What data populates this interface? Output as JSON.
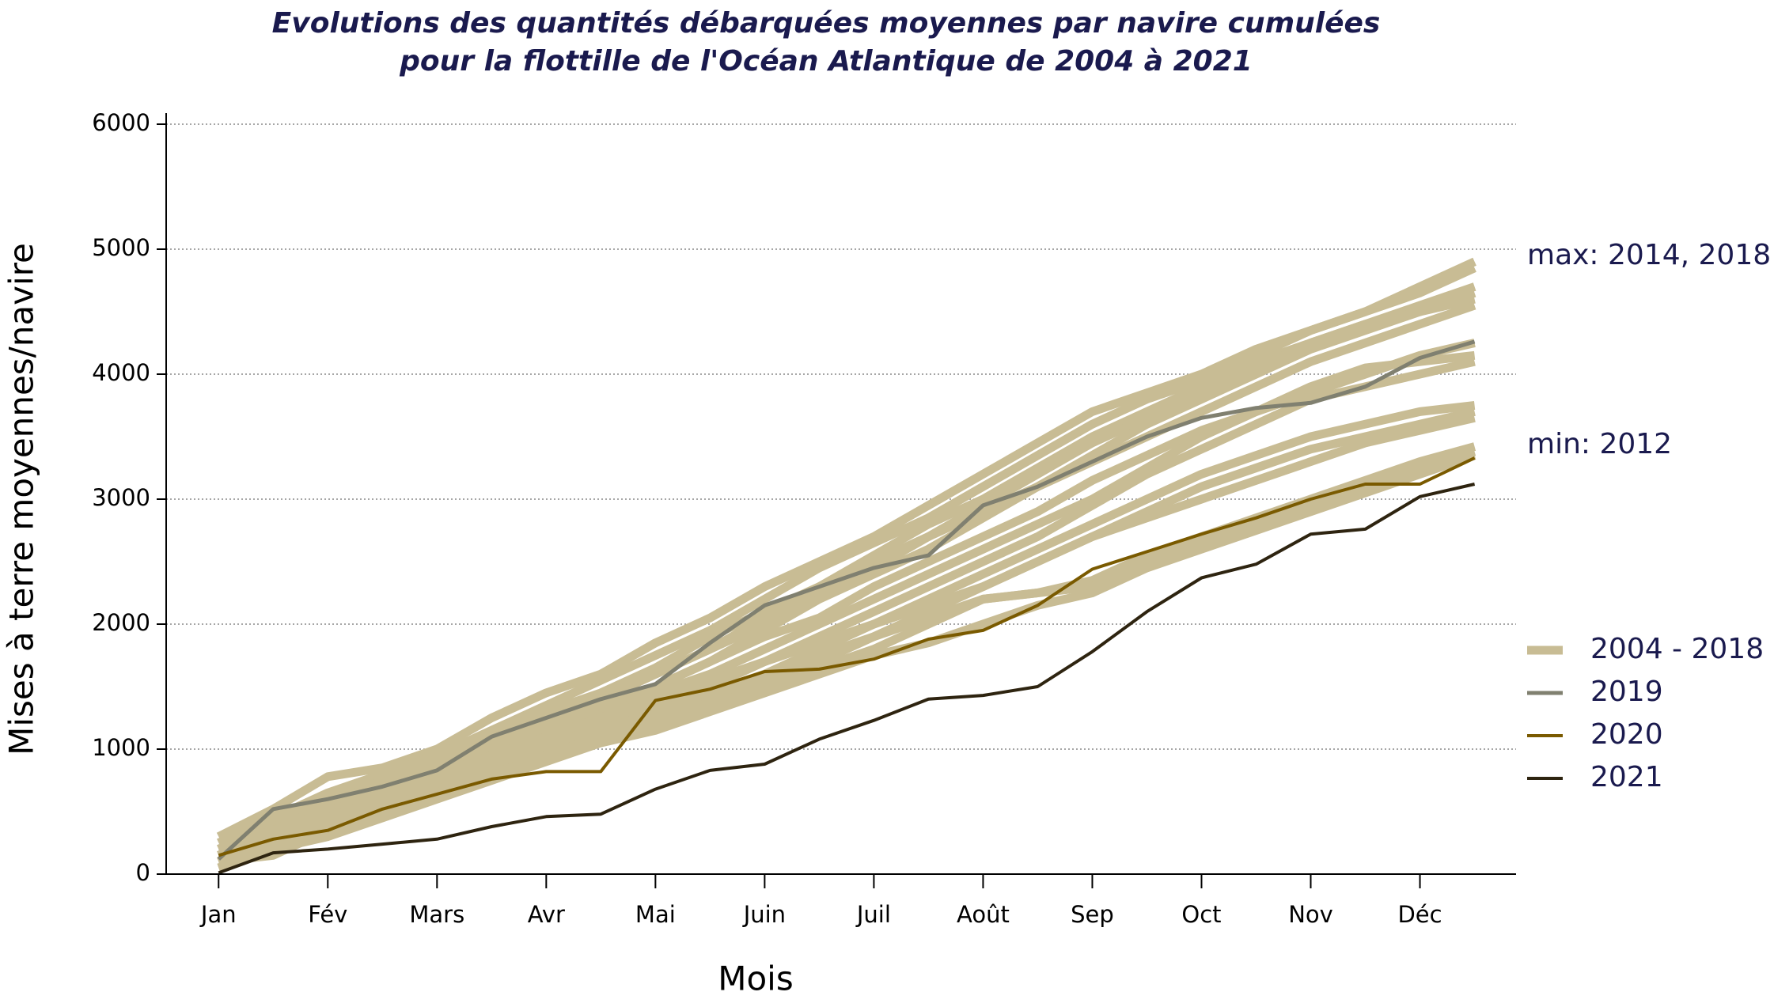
{
  "chart_data": {
    "type": "line",
    "title": [
      "Evolutions des quantités débarquées moyennes par navire cumulées",
      "pour la flottille de l'Océan Atlantique de 2004 à 2021"
    ],
    "x_label": "Mois",
    "y_label": "Mises à terre moyennes/navire",
    "annotations": [
      "max: 2014, 2018",
      "min: 2012"
    ],
    "x": [
      0,
      0.5,
      1,
      1.5,
      2,
      2.5,
      3,
      3.5,
      4,
      4.5,
      5,
      5.5,
      6,
      6.5,
      7,
      7.5,
      8,
      8.5,
      9,
      9.5,
      10,
      10.5,
      11,
      11.5
    ],
    "xlim": [
      -0.48,
      11.88
    ],
    "xticks": [
      {
        "value": 0,
        "label": "Jan"
      },
      {
        "value": 1,
        "label": "Fév"
      },
      {
        "value": 2,
        "label": "Mars"
      },
      {
        "value": 3,
        "label": "Avr"
      },
      {
        "value": 4,
        "label": "Mai"
      },
      {
        "value": 5,
        "label": "Juin"
      },
      {
        "value": 6,
        "label": "Juil"
      },
      {
        "value": 7,
        "label": "Août"
      },
      {
        "value": 8,
        "label": "Sep"
      },
      {
        "value": 9,
        "label": "Oct"
      },
      {
        "value": 10,
        "label": "Nov"
      },
      {
        "value": 11,
        "label": "Déc"
      }
    ],
    "ylim": [
      0,
      6000
    ],
    "yticks": [
      0,
      1000,
      2000,
      3000,
      4000,
      5000,
      6000
    ],
    "grid": true,
    "series": [
      {
        "name": "2004 - 2018",
        "color": "#c8bc94",
        "values": [
          [
            300,
            520,
            780,
            850,
            1000,
            1250,
            1450,
            1600,
            1850,
            2050,
            2300,
            2500,
            2700,
            2950,
            3200,
            3450,
            3700,
            3850,
            4000,
            4200,
            4350,
            4500,
            4700,
            4900
          ],
          [
            200,
            400,
            600,
            800,
            950,
            1150,
            1350,
            1550,
            1750,
            1950,
            2200,
            2450,
            2650,
            2850,
            3100,
            3350,
            3600,
            3800,
            3950,
            4150,
            4350,
            4500,
            4650,
            4850
          ],
          [
            150,
            350,
            550,
            700,
            900,
            1100,
            1300,
            1450,
            1650,
            1900,
            2100,
            2300,
            2550,
            2800,
            3000,
            3250,
            3500,
            3700,
            3900,
            4100,
            4250,
            4400,
            4550,
            4700
          ],
          [
            100,
            250,
            450,
            650,
            850,
            1050,
            1200,
            1400,
            1600,
            1800,
            2000,
            2250,
            2450,
            2700,
            2950,
            3200,
            3450,
            3650,
            3850,
            4050,
            4250,
            4400,
            4500,
            4650
          ],
          [
            250,
            450,
            650,
            800,
            950,
            1100,
            1250,
            1400,
            1600,
            1800,
            2050,
            2300,
            2500,
            2700,
            2900,
            3100,
            3350,
            3600,
            3800,
            4000,
            4200,
            4350,
            4500,
            4600
          ],
          [
            50,
            200,
            400,
            600,
            800,
            1000,
            1150,
            1300,
            1500,
            1700,
            1950,
            2200,
            2400,
            2600,
            2850,
            3100,
            3300,
            3500,
            3700,
            3900,
            4100,
            4250,
            4400,
            4550
          ],
          [
            200,
            350,
            550,
            750,
            900,
            1050,
            1200,
            1350,
            1500,
            1700,
            1900,
            2050,
            2300,
            2500,
            2700,
            2900,
            3150,
            3350,
            3550,
            3700,
            3850,
            4000,
            4150,
            4250
          ],
          [
            100,
            300,
            500,
            650,
            800,
            950,
            1100,
            1250,
            1450,
            1600,
            1800,
            2000,
            2200,
            2400,
            2600,
            2800,
            3000,
            3250,
            3500,
            3700,
            3900,
            4050,
            4100,
            4150
          ],
          [
            150,
            300,
            450,
            600,
            750,
            900,
            1050,
            1200,
            1350,
            1500,
            1700,
            1900,
            2100,
            2300,
            2500,
            2700,
            2950,
            3200,
            3400,
            3600,
            3800,
            3900,
            4000,
            4100
          ],
          [
            100,
            250,
            400,
            550,
            700,
            850,
            1000,
            1150,
            1300,
            1450,
            1600,
            1800,
            2000,
            2200,
            2400,
            2600,
            2800,
            3000,
            3200,
            3350,
            3500,
            3600,
            3700,
            3750
          ],
          [
            200,
            350,
            500,
            650,
            800,
            950,
            1100,
            1250,
            1400,
            1550,
            1700,
            1850,
            2000,
            2150,
            2300,
            2500,
            2700,
            2900,
            3100,
            3250,
            3400,
            3500,
            3600,
            3700
          ],
          [
            50,
            200,
            350,
            500,
            650,
            800,
            950,
            1100,
            1250,
            1400,
            1550,
            1700,
            1900,
            2100,
            2300,
            2500,
            2700,
            2850,
            3000,
            3150,
            3300,
            3450,
            3550,
            3650
          ],
          [
            100,
            150,
            350,
            500,
            650,
            800,
            950,
            1100,
            1200,
            1350,
            1500,
            1650,
            1800,
            2000,
            2200,
            2250,
            2350,
            2550,
            2700,
            2850,
            3000,
            3150,
            3300,
            3420
          ],
          [
            200,
            300,
            450,
            600,
            750,
            900,
            1050,
            1150,
            1300,
            1450,
            1600,
            1750,
            1900,
            2050,
            2200,
            2250,
            2300,
            2500,
            2650,
            2800,
            2950,
            3100,
            3250,
            3380
          ],
          [
            150,
            200,
            300,
            450,
            600,
            750,
            900,
            1050,
            1150,
            1300,
            1450,
            1600,
            1750,
            1850,
            2000,
            2150,
            2250,
            2450,
            2600,
            2750,
            2900,
            3050,
            3200,
            3350
          ]
        ]
      },
      {
        "name": "2019",
        "color": "#808070",
        "values": [
          120,
          520,
          600,
          700,
          830,
          1100,
          1250,
          1400,
          1520,
          1850,
          2150,
          2300,
          2450,
          2550,
          2950,
          3100,
          3300,
          3500,
          3650,
          3730,
          3770,
          3900,
          4130,
          4260
        ]
      },
      {
        "name": "2020",
        "color": "#7a5a00",
        "values": [
          150,
          280,
          350,
          520,
          640,
          760,
          820,
          820,
          1390,
          1480,
          1620,
          1640,
          1720,
          1880,
          1950,
          2150,
          2440,
          2580,
          2720,
          2850,
          3000,
          3120,
          3120,
          3330
        ]
      },
      {
        "name": "2021",
        "color": "#2e2410",
        "values": [
          10,
          170,
          200,
          240,
          280,
          380,
          460,
          480,
          680,
          830,
          880,
          1080,
          1230,
          1400,
          1430,
          1500,
          1780,
          2100,
          2370,
          2480,
          2720,
          2760,
          3020,
          3120
        ]
      }
    ]
  }
}
